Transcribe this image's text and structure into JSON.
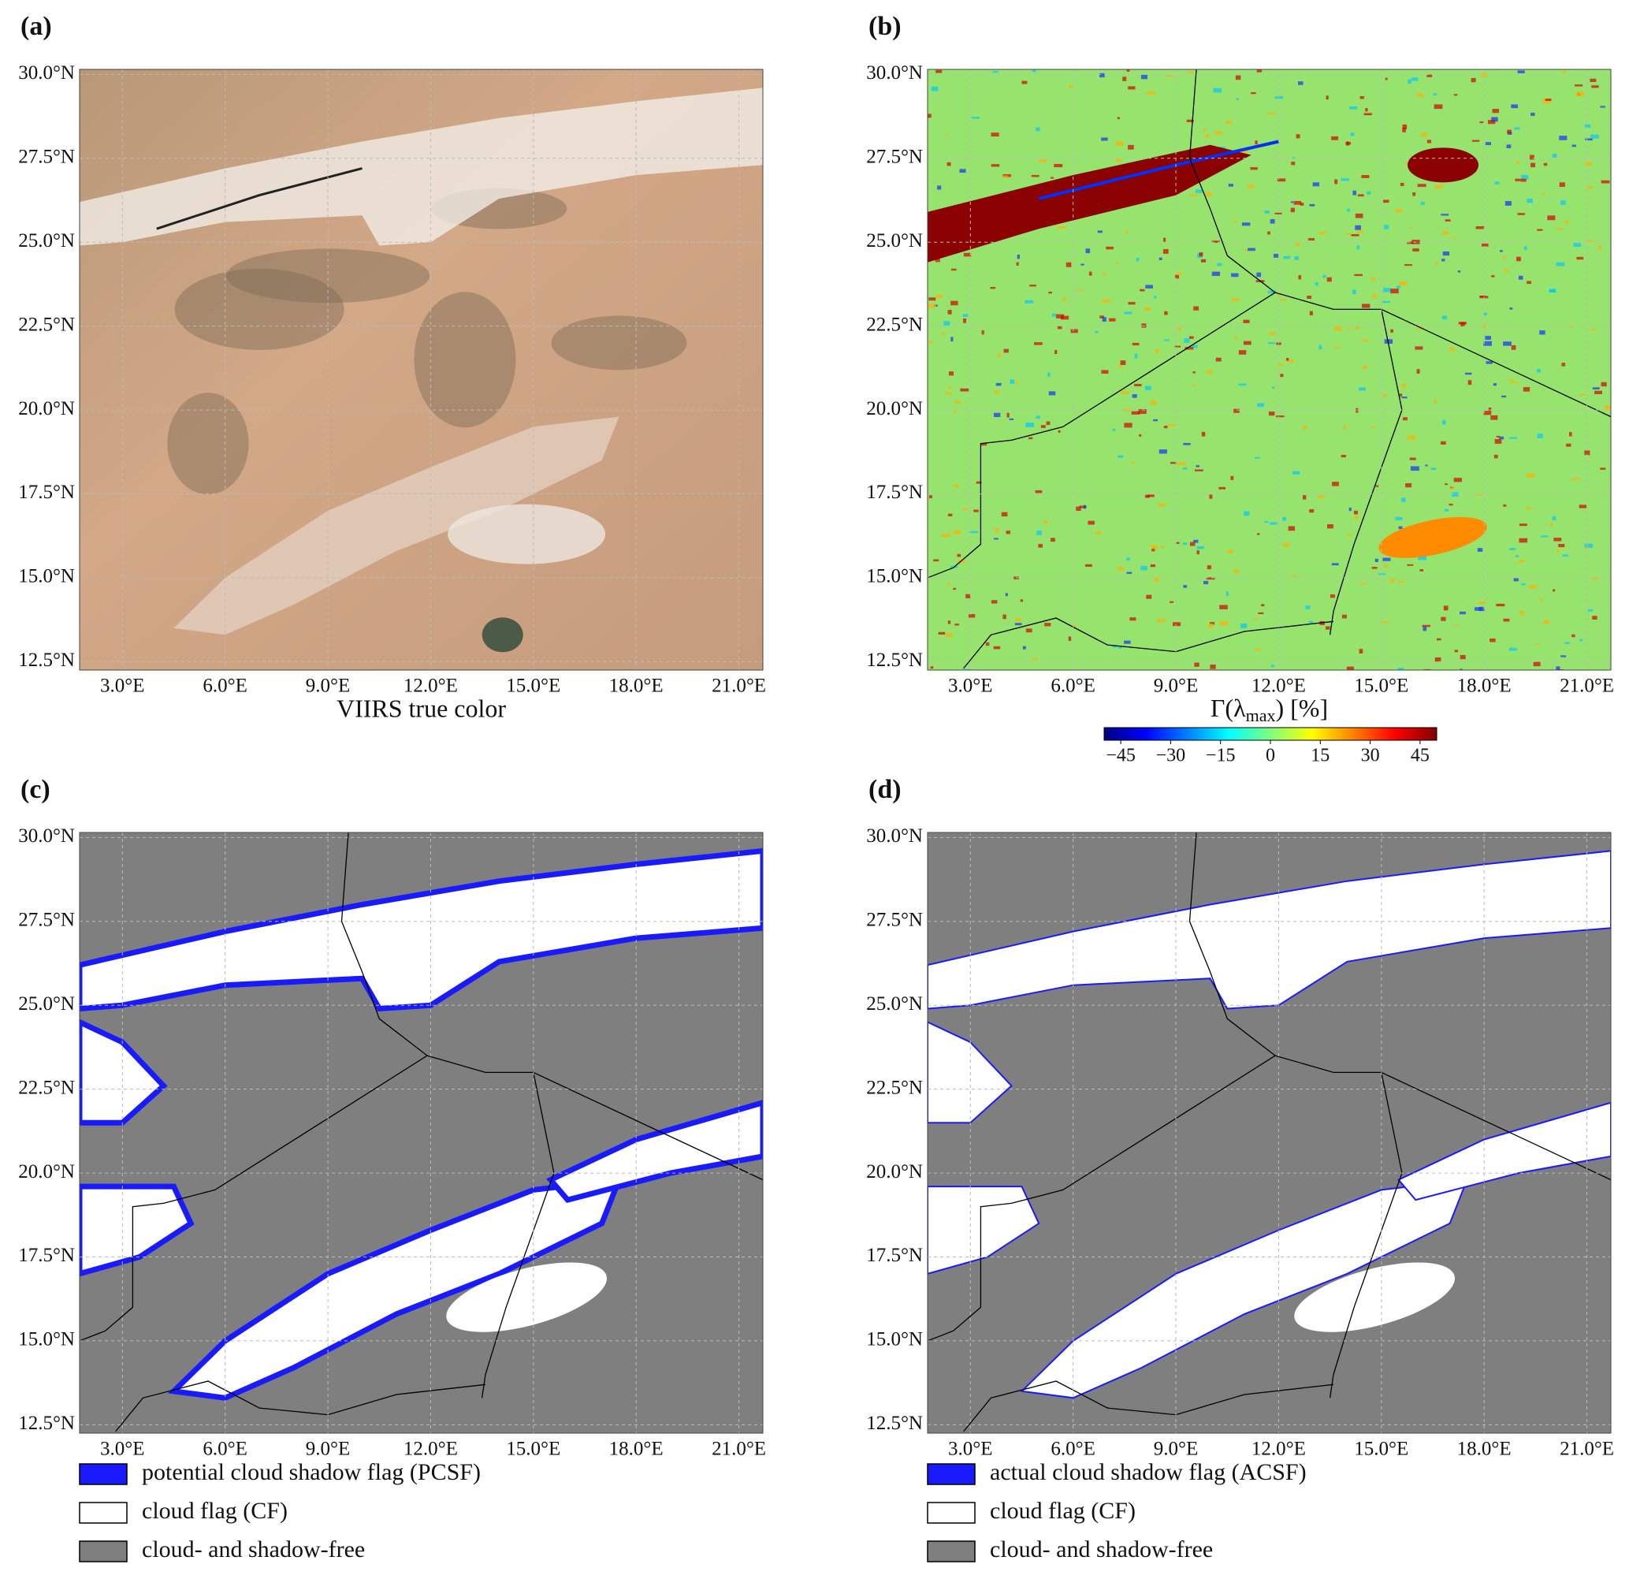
{
  "map": {
    "lon_range": [
      1.75,
      21.7
    ],
    "lat_range": [
      12.25,
      30.15
    ],
    "lat_ticks": [
      {
        "value": 30,
        "label": "30.0°N"
      },
      {
        "value": 27.5,
        "label": "27.5°N"
      },
      {
        "value": 25,
        "label": "25.0°N"
      },
      {
        "value": 22.5,
        "label": "22.5°N"
      },
      {
        "value": 20,
        "label": "20.0°N"
      },
      {
        "value": 17.5,
        "label": "17.5°N"
      },
      {
        "value": 15,
        "label": "15.0°N"
      },
      {
        "value": 12.5,
        "label": "12.5°N"
      }
    ],
    "lon_ticks": [
      {
        "value": 3,
        "label": "3.0°E"
      },
      {
        "value": 6,
        "label": "6.0°E"
      },
      {
        "value": 9,
        "label": "9.0°E"
      },
      {
        "value": 12,
        "label": "12.0°E"
      },
      {
        "value": 15,
        "label": "15.0°E"
      },
      {
        "value": 18,
        "label": "18.0°E"
      },
      {
        "value": 21,
        "label": "21.0°E"
      }
    ]
  },
  "panels": [
    {
      "label": "(a)",
      "caption": "VIIRS true color"
    },
    {
      "label": "(b)",
      "colorbar": {
        "label_main": "Γ(λ",
        "label_sub": "max",
        "label_end": ") [%]",
        "clim": [
          -50,
          50
        ],
        "ticks": [
          {
            "value": -45,
            "label": "−45"
          },
          {
            "value": -30,
            "label": "−30"
          },
          {
            "value": -15,
            "label": "−15"
          },
          0,
          15,
          30,
          45
        ]
      }
    },
    {
      "label": "(c)",
      "legend": [
        {
          "label": "potential cloud shadow flag (PCSF)",
          "color": "#1a1aff"
        },
        {
          "label": "cloud flag (CF)",
          "color": "#ffffff"
        },
        {
          "label": "cloud- and shadow-free",
          "color": "#7f7f7f"
        }
      ]
    },
    {
      "label": "(d)",
      "legend": [
        {
          "label": "actual cloud shadow flag (ACSF)",
          "color": "#1a1aff"
        },
        {
          "label": "cloud flag (CF)",
          "color": "#ffffff"
        },
        {
          "label": "cloud- and shadow-free",
          "color": "#7f7f7f"
        }
      ]
    }
  ]
}
